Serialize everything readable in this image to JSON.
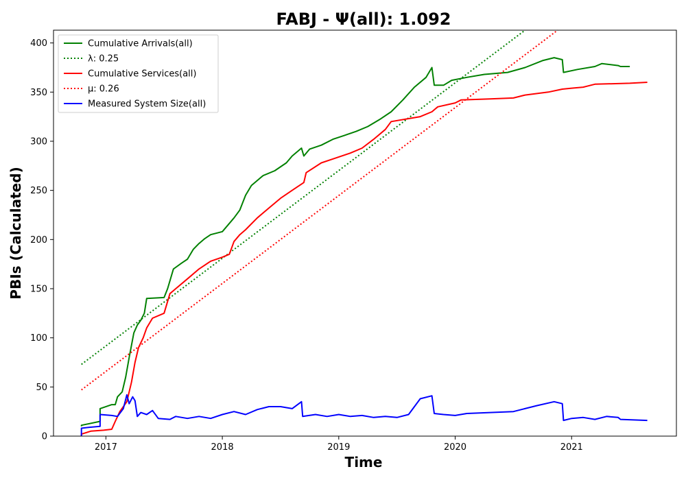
{
  "chart_data": {
    "type": "line",
    "title": "FABJ -  Ψ(all): 1.092",
    "xlabel": "Time",
    "ylabel": "PBIs (Calculated)",
    "xlim": [
      2016.55,
      2021.9
    ],
    "ylim": [
      0,
      413
    ],
    "x_ticks": [
      "2017",
      "2018",
      "2019",
      "2020",
      "2021"
    ],
    "y_ticks": [
      0,
      50,
      100,
      150,
      200,
      250,
      300,
      350,
      400
    ],
    "grid": false,
    "legend_position": "upper left",
    "series": [
      {
        "name": "Cumulative Arrivals(all)",
        "color": "#008000",
        "style": "solid",
        "points": [
          [
            2016.79,
            10
          ],
          [
            2016.79,
            11
          ],
          [
            2016.95,
            15
          ],
          [
            2016.95,
            28
          ],
          [
            2017.05,
            32
          ],
          [
            2017.08,
            32
          ],
          [
            2017.1,
            40
          ],
          [
            2017.14,
            45
          ],
          [
            2017.17,
            60
          ],
          [
            2017.2,
            80
          ],
          [
            2017.24,
            105
          ],
          [
            2017.27,
            113
          ],
          [
            2017.3,
            118
          ],
          [
            2017.33,
            125
          ],
          [
            2017.35,
            140
          ],
          [
            2017.5,
            141
          ],
          [
            2017.53,
            150
          ],
          [
            2017.58,
            170
          ],
          [
            2017.65,
            176
          ],
          [
            2017.7,
            180
          ],
          [
            2017.75,
            190
          ],
          [
            2017.8,
            196
          ],
          [
            2017.85,
            201
          ],
          [
            2017.9,
            205
          ],
          [
            2018,
            208
          ],
          [
            2018.05,
            215
          ],
          [
            2018.1,
            222
          ],
          [
            2018.15,
            230
          ],
          [
            2018.2,
            245
          ],
          [
            2018.25,
            255
          ],
          [
            2018.35,
            265
          ],
          [
            2018.45,
            270
          ],
          [
            2018.55,
            278
          ],
          [
            2018.6,
            285
          ],
          [
            2018.68,
            293
          ],
          [
            2018.7,
            285
          ],
          [
            2018.75,
            292
          ],
          [
            2018.85,
            296
          ],
          [
            2018.95,
            302
          ],
          [
            2019.05,
            306
          ],
          [
            2019.15,
            310
          ],
          [
            2019.25,
            315
          ],
          [
            2019.35,
            322
          ],
          [
            2019.45,
            330
          ],
          [
            2019.55,
            342
          ],
          [
            2019.65,
            355
          ],
          [
            2019.75,
            365
          ],
          [
            2019.8,
            375
          ],
          [
            2019.82,
            357
          ],
          [
            2019.9,
            357
          ],
          [
            2019.97,
            362
          ],
          [
            2020.1,
            365
          ],
          [
            2020.25,
            368
          ],
          [
            2020.45,
            370
          ],
          [
            2020.6,
            375
          ],
          [
            2020.75,
            382
          ],
          [
            2020.85,
            385
          ],
          [
            2020.92,
            383
          ],
          [
            2020.93,
            370
          ],
          [
            2021.05,
            373
          ],
          [
            2021.2,
            376
          ],
          [
            2021.26,
            379
          ],
          [
            2021.4,
            377
          ],
          [
            2021.42,
            376
          ],
          [
            2021.5,
            376
          ]
        ]
      },
      {
        "name": "λ: 0.25",
        "color": "#008000",
        "style": "dotted",
        "points": [
          [
            2016.79,
            73
          ],
          [
            2020.6,
            413
          ]
        ]
      },
      {
        "name": "Cumulative Services(all)",
        "color": "#ff0000",
        "style": "solid",
        "points": [
          [
            2016.79,
            0
          ],
          [
            2016.79,
            2
          ],
          [
            2016.87,
            5
          ],
          [
            2016.98,
            6
          ],
          [
            2017.05,
            7
          ],
          [
            2017.08,
            15
          ],
          [
            2017.12,
            25
          ],
          [
            2017.18,
            35
          ],
          [
            2017.22,
            55
          ],
          [
            2017.25,
            75
          ],
          [
            2017.28,
            90
          ],
          [
            2017.32,
            100
          ],
          [
            2017.35,
            110
          ],
          [
            2017.4,
            120
          ],
          [
            2017.5,
            125
          ],
          [
            2017.55,
            145
          ],
          [
            2017.6,
            150
          ],
          [
            2017.7,
            160
          ],
          [
            2017.8,
            170
          ],
          [
            2017.9,
            178
          ],
          [
            2018.0,
            182
          ],
          [
            2018.06,
            185
          ],
          [
            2018.1,
            198
          ],
          [
            2018.15,
            205
          ],
          [
            2018.2,
            210
          ],
          [
            2018.3,
            222
          ],
          [
            2018.4,
            232
          ],
          [
            2018.5,
            242
          ],
          [
            2018.6,
            250
          ],
          [
            2018.7,
            258
          ],
          [
            2018.72,
            268
          ],
          [
            2018.85,
            278
          ],
          [
            2018.95,
            282
          ],
          [
            2019.1,
            288
          ],
          [
            2019.2,
            293
          ],
          [
            2019.3,
            302
          ],
          [
            2019.4,
            312
          ],
          [
            2019.45,
            320
          ],
          [
            2019.6,
            323
          ],
          [
            2019.7,
            325
          ],
          [
            2019.8,
            330
          ],
          [
            2019.85,
            335
          ],
          [
            2020.0,
            339
          ],
          [
            2020.05,
            342
          ],
          [
            2020.3,
            343
          ],
          [
            2020.5,
            344
          ],
          [
            2020.6,
            347
          ],
          [
            2020.8,
            350
          ],
          [
            2020.92,
            353
          ],
          [
            2021.0,
            354
          ],
          [
            2021.1,
            355
          ],
          [
            2021.2,
            358
          ],
          [
            2021.5,
            359
          ],
          [
            2021.65,
            360
          ]
        ]
      },
      {
        "name": "μ: 0.26",
        "color": "#ff0000",
        "style": "dotted",
        "points": [
          [
            2016.79,
            47
          ],
          [
            2020.88,
            413
          ]
        ]
      },
      {
        "name": "Measured System Size(all)",
        "color": "#0000ff",
        "style": "solid",
        "points": [
          [
            2016.79,
            0
          ],
          [
            2016.79,
            8
          ],
          [
            2016.86,
            9
          ],
          [
            2016.95,
            10
          ],
          [
            2016.95,
            22
          ],
          [
            2017.05,
            21
          ],
          [
            2017.1,
            20
          ],
          [
            2017.15,
            28
          ],
          [
            2017.18,
            42
          ],
          [
            2017.2,
            33
          ],
          [
            2017.23,
            40
          ],
          [
            2017.25,
            36
          ],
          [
            2017.27,
            20
          ],
          [
            2017.3,
            24
          ],
          [
            2017.35,
            22
          ],
          [
            2017.4,
            26
          ],
          [
            2017.45,
            18
          ],
          [
            2017.55,
            17
          ],
          [
            2017.6,
            20
          ],
          [
            2017.7,
            18
          ],
          [
            2017.8,
            20
          ],
          [
            2017.9,
            18
          ],
          [
            2018.0,
            22
          ],
          [
            2018.1,
            25
          ],
          [
            2018.2,
            22
          ],
          [
            2018.3,
            27
          ],
          [
            2018.4,
            30
          ],
          [
            2018.5,
            30
          ],
          [
            2018.6,
            28
          ],
          [
            2018.68,
            35
          ],
          [
            2018.69,
            20
          ],
          [
            2018.8,
            22
          ],
          [
            2018.9,
            20
          ],
          [
            2019.0,
            22
          ],
          [
            2019.1,
            20
          ],
          [
            2019.2,
            21
          ],
          [
            2019.3,
            19
          ],
          [
            2019.4,
            20
          ],
          [
            2019.5,
            19
          ],
          [
            2019.6,
            22
          ],
          [
            2019.65,
            30
          ],
          [
            2019.7,
            38
          ],
          [
            2019.8,
            41
          ],
          [
            2019.82,
            23
          ],
          [
            2019.9,
            22
          ],
          [
            2020.0,
            21
          ],
          [
            2020.1,
            23
          ],
          [
            2020.3,
            24
          ],
          [
            2020.5,
            25
          ],
          [
            2020.6,
            28
          ],
          [
            2020.7,
            31
          ],
          [
            2020.85,
            35
          ],
          [
            2020.92,
            33
          ],
          [
            2020.93,
            16
          ],
          [
            2021.0,
            18
          ],
          [
            2021.1,
            19
          ],
          [
            2021.2,
            17
          ],
          [
            2021.3,
            20
          ],
          [
            2021.4,
            19
          ],
          [
            2021.42,
            17
          ],
          [
            2021.65,
            16
          ]
        ]
      }
    ]
  }
}
